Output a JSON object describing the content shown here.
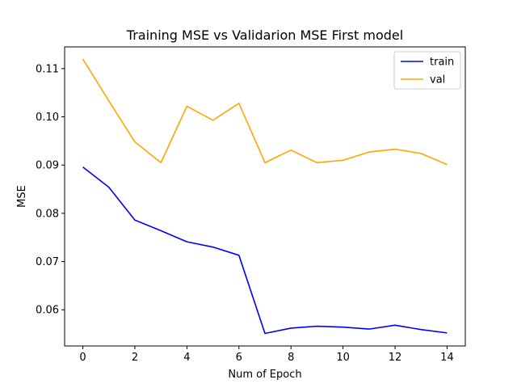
{
  "chart_data": {
    "type": "line",
    "title": "Training MSE vs Validarion MSE First model",
    "xlabel": "Num of Epoch",
    "ylabel": "MSE",
    "xlim": [
      -0.7,
      14.7
    ],
    "ylim": [
      0.0525,
      0.1145
    ],
    "x_ticks": [
      0,
      2,
      4,
      6,
      8,
      10,
      12,
      14
    ],
    "y_ticks": [
      0.06,
      0.07,
      0.08,
      0.09,
      0.1,
      0.11
    ],
    "y_tick_labels": [
      "0.06",
      "0.07",
      "0.08",
      "0.09",
      "0.10",
      "0.11"
    ],
    "grid": false,
    "legend_position": "top-right",
    "x": [
      0,
      1,
      2,
      3,
      4,
      5,
      6,
      7,
      8,
      9,
      10,
      11,
      12,
      13,
      14
    ],
    "series": [
      {
        "name": "train",
        "color": "#0000ff",
        "values": [
          0.0896,
          0.0854,
          0.0786,
          0.0764,
          0.0741,
          0.073,
          0.0713,
          0.0551,
          0.0562,
          0.0566,
          0.0564,
          0.056,
          0.0568,
          0.0559,
          0.0552
        ]
      },
      {
        "name": "val",
        "color": "#ffa500",
        "values": [
          0.112,
          0.1033,
          0.0948,
          0.0905,
          0.1022,
          0.0993,
          0.1028,
          0.0905,
          0.0931,
          0.0905,
          0.091,
          0.0927,
          0.0933,
          0.0924,
          0.0901
        ]
      }
    ]
  }
}
